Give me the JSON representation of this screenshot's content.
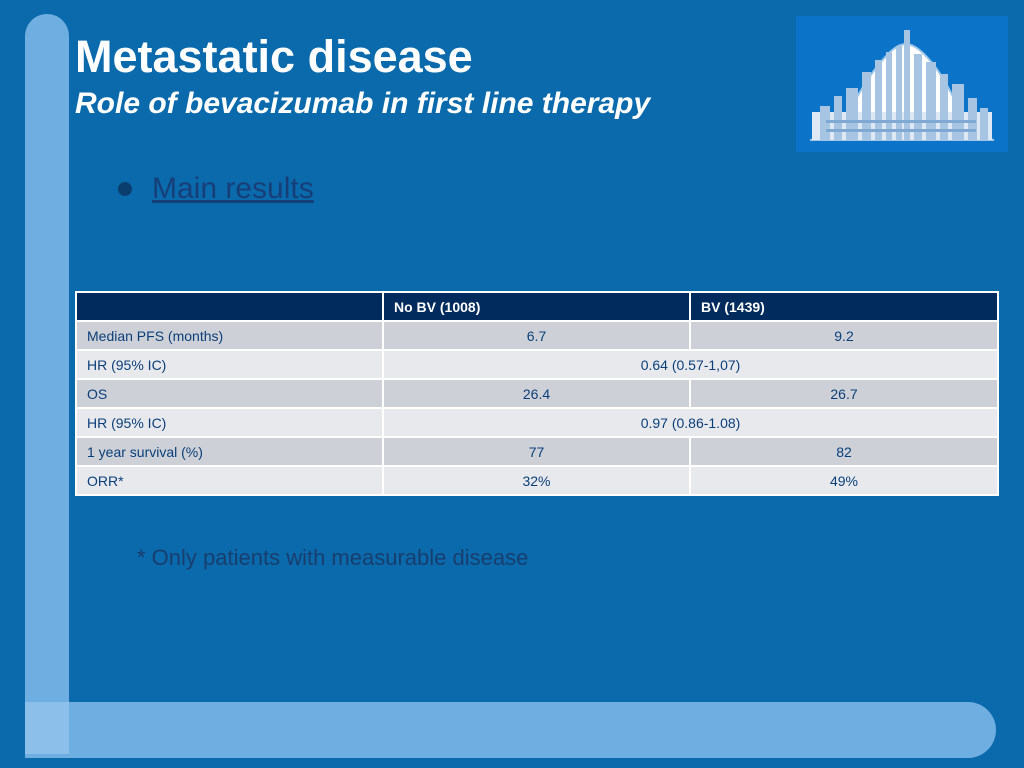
{
  "slide": {
    "title": "Metastatic disease",
    "subtitle": "Role of bevacizumab in first line therapy",
    "bullet": "Main results",
    "footnote": "* Only patients with measurable disease",
    "logo_icon": "city-skyline-icon"
  },
  "table": {
    "headers": [
      "",
      "No BV (1008)",
      "BV (1439)"
    ],
    "rows": [
      {
        "label": "Median PFS (months)",
        "no_bv": "6.7",
        "bv": "9.2"
      },
      {
        "label": "HR (95% IC)",
        "combined": "0.64 (0.57-1,07)"
      },
      {
        "label": "OS",
        "no_bv": "26.4",
        "bv": "26.7"
      },
      {
        "label": "HR (95% IC)",
        "combined": "0.97 (0.86-1.08)"
      },
      {
        "label": "1 year survival (%)",
        "no_bv": "77",
        "bv": "82"
      },
      {
        "label": "ORR*",
        "no_bv": "32%",
        "bv": "49%"
      }
    ]
  },
  "colors": {
    "background": "#0b6aab",
    "accent_bar": "#6eaee0",
    "table_header": "#002b5c"
  }
}
